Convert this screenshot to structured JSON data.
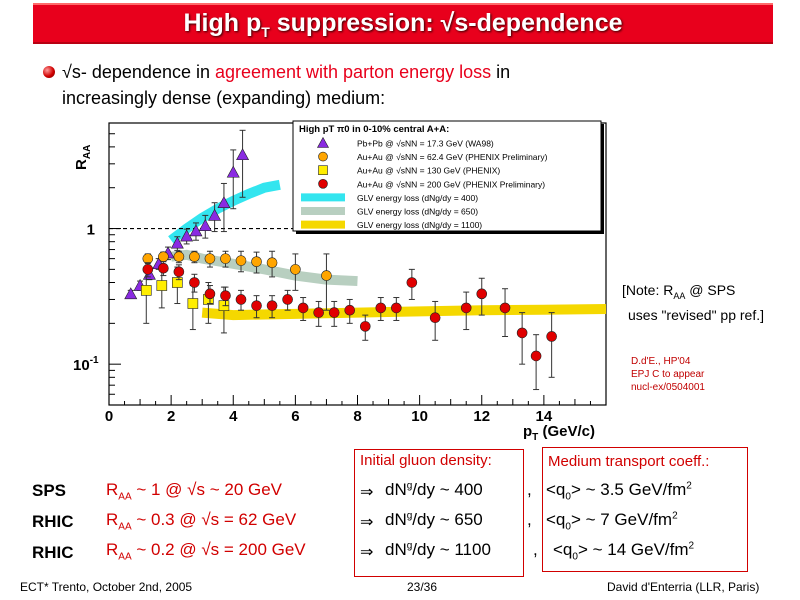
{
  "title": {
    "pre": "High p",
    "sub": "T",
    "post": " suppression: √s-dependence"
  },
  "bullet": {
    "part1": "√s- dependence in ",
    "part2": "agreement with parton energy loss",
    "part3": " in",
    "line2": "increasingly dense (expanding) medium:"
  },
  "note": {
    "line1": "[Note: R",
    "sub": "AA",
    "line1b": " @ SPS",
    "line2": "uses \"revised\" pp ref.]"
  },
  "reference": {
    "line1": "D.d'E., HP'04",
    "line2": "EPJ C to appear",
    "line3": "nucl-ex/0504001"
  },
  "boxes": {
    "gluon_header": "Initial gluon density:",
    "transport_header": "Medium transport coeff.:"
  },
  "rows": [
    {
      "label": "SPS",
      "raa_pre": "R",
      "raa_sub": "AA",
      "raa_post": " ~ 1 @ √s ~ 20 GeV",
      "arrow": "⇒",
      "dng": " ~ 400",
      "comma": ",",
      "q_val": "> ~ 3.5 GeV/fm",
      "q_exp": "2"
    },
    {
      "label": "RHIC",
      "raa_pre": "R",
      "raa_sub": "AA",
      "raa_post": " ~ 0.3 @ √s = 62 GeV",
      "arrow": "⇒",
      "dng": " ~ 650",
      "comma": ",",
      "q_val": "> ~ 7 GeV/fm",
      "q_exp": "2"
    },
    {
      "label": "RHIC",
      "raa_pre": "R",
      "raa_sub": "AA",
      "raa_post": " ~ 0.2 @ √s = 200 GeV",
      "arrow": "⇒",
      "dng": " ~ 1100",
      "comma": ",",
      "q_val": "> ~ 14 GeV/fm",
      "q_exp": "2"
    }
  ],
  "footer": {
    "left": "ECT* Trento, October 2nd, 2005",
    "center": "23/36",
    "right": "David d'Enterria (LLR, Paris)"
  },
  "chart_data": {
    "type": "scatter",
    "title": "High pT π0 in 0-10% central A+A:",
    "xlabel": "pT (GeV/c)",
    "ylabel": "RAA",
    "xlim": [
      0,
      16
    ],
    "ylim": [
      0.05,
      6
    ],
    "yscale": "log",
    "xticks": [
      0,
      2,
      4,
      6,
      8,
      10,
      12,
      14
    ],
    "yticks": [
      {
        "value": 0.1,
        "label": "10-1"
      },
      {
        "value": 1,
        "label": "1"
      }
    ],
    "reference_line": 1,
    "legend_position": "top-right",
    "series": [
      {
        "name": "Pb+Pb @ √sNN = 17.3 GeV (WA98)",
        "marker": "triangle",
        "color": "#8a2be2",
        "x": [
          0.7,
          1.0,
          1.3,
          1.6,
          1.9,
          2.2,
          2.5,
          2.8,
          3.1,
          3.4,
          3.7,
          4.0,
          4.3
        ],
        "y": [
          0.33,
          0.38,
          0.46,
          0.55,
          0.66,
          0.78,
          0.88,
          0.96,
          1.05,
          1.25,
          1.55,
          2.6,
          3.5
        ],
        "err": [
          0.02,
          0.03,
          0.04,
          0.05,
          0.07,
          0.09,
          0.11,
          0.14,
          0.2,
          0.3,
          0.6,
          1.2,
          1.8
        ]
      },
      {
        "name": "Au+Au @ √sNN = 62.4 GeV (PHENIX Preliminary)",
        "marker": "circle",
        "color": "#ffa500",
        "x": [
          1.25,
          1.75,
          2.25,
          2.75,
          3.25,
          3.75,
          4.25,
          4.75,
          5.25,
          6.0,
          7.0
        ],
        "y": [
          0.6,
          0.62,
          0.62,
          0.62,
          0.6,
          0.6,
          0.58,
          0.57,
          0.56,
          0.5,
          0.45
        ],
        "err": [
          0.05,
          0.05,
          0.06,
          0.06,
          0.08,
          0.08,
          0.1,
          0.1,
          0.12,
          0.15,
          0.2
        ]
      },
      {
        "name": "Au+Au @ √sNN = 130 GeV (PHENIX)",
        "marker": "square",
        "color": "#ffee00",
        "x": [
          1.2,
          1.7,
          2.2,
          2.7,
          3.2,
          3.7
        ],
        "y": [
          0.35,
          0.38,
          0.4,
          0.28,
          0.3,
          0.27
        ],
        "err": [
          0.15,
          0.12,
          0.12,
          0.1,
          0.1,
          0.1
        ]
      },
      {
        "name": "Au+Au @ √sNN = 200 GeV (PHENIX Preliminary)",
        "marker": "circle",
        "color": "#e00000",
        "x": [
          1.25,
          1.75,
          2.25,
          2.75,
          3.25,
          3.75,
          4.25,
          4.75,
          5.25,
          5.75,
          6.25,
          6.75,
          7.25,
          7.75,
          8.25,
          8.75,
          9.25,
          9.75,
          10.5,
          11.5,
          12.0,
          12.75,
          13.3,
          13.75,
          14.25
        ],
        "y": [
          0.5,
          0.51,
          0.48,
          0.4,
          0.33,
          0.32,
          0.3,
          0.27,
          0.27,
          0.3,
          0.26,
          0.24,
          0.24,
          0.25,
          0.19,
          0.26,
          0.26,
          0.4,
          0.22,
          0.26,
          0.33,
          0.26,
          0.17,
          0.115,
          0.16
        ],
        "err": [
          0.06,
          0.06,
          0.06,
          0.06,
          0.05,
          0.05,
          0.05,
          0.05,
          0.05,
          0.05,
          0.05,
          0.05,
          0.05,
          0.05,
          0.04,
          0.05,
          0.05,
          0.1,
          0.07,
          0.08,
          0.1,
          0.1,
          0.07,
          0.05,
          0.08
        ]
      },
      {
        "name": "GLV energy loss (dNg/dy = 400)",
        "type": "band",
        "color": "#33e5ef",
        "x": [
          2.0,
          2.5,
          3.0,
          3.5,
          4.0,
          4.5,
          5.0,
          5.5
        ],
        "y": [
          0.82,
          1.0,
          1.2,
          1.4,
          1.6,
          1.8,
          2.0,
          2.1
        ]
      },
      {
        "name": "GLV energy loss (dNg/dy = 650)",
        "type": "band",
        "color": "#b8cfc0",
        "x": [
          2.0,
          2.5,
          3.0,
          4.0,
          5.0,
          6.0,
          7.0,
          8.0
        ],
        "y": [
          0.62,
          0.64,
          0.6,
          0.55,
          0.5,
          0.45,
          0.42,
          0.41
        ]
      },
      {
        "name": "GLV energy loss (dNg/dy = 1100)",
        "type": "band",
        "color": "#f5d800",
        "x": [
          3.0,
          4.0,
          6.0,
          8.0,
          10.0,
          12.0,
          14.0,
          16.0
        ],
        "y": [
          0.24,
          0.23,
          0.235,
          0.24,
          0.245,
          0.25,
          0.252,
          0.255
        ]
      }
    ]
  }
}
